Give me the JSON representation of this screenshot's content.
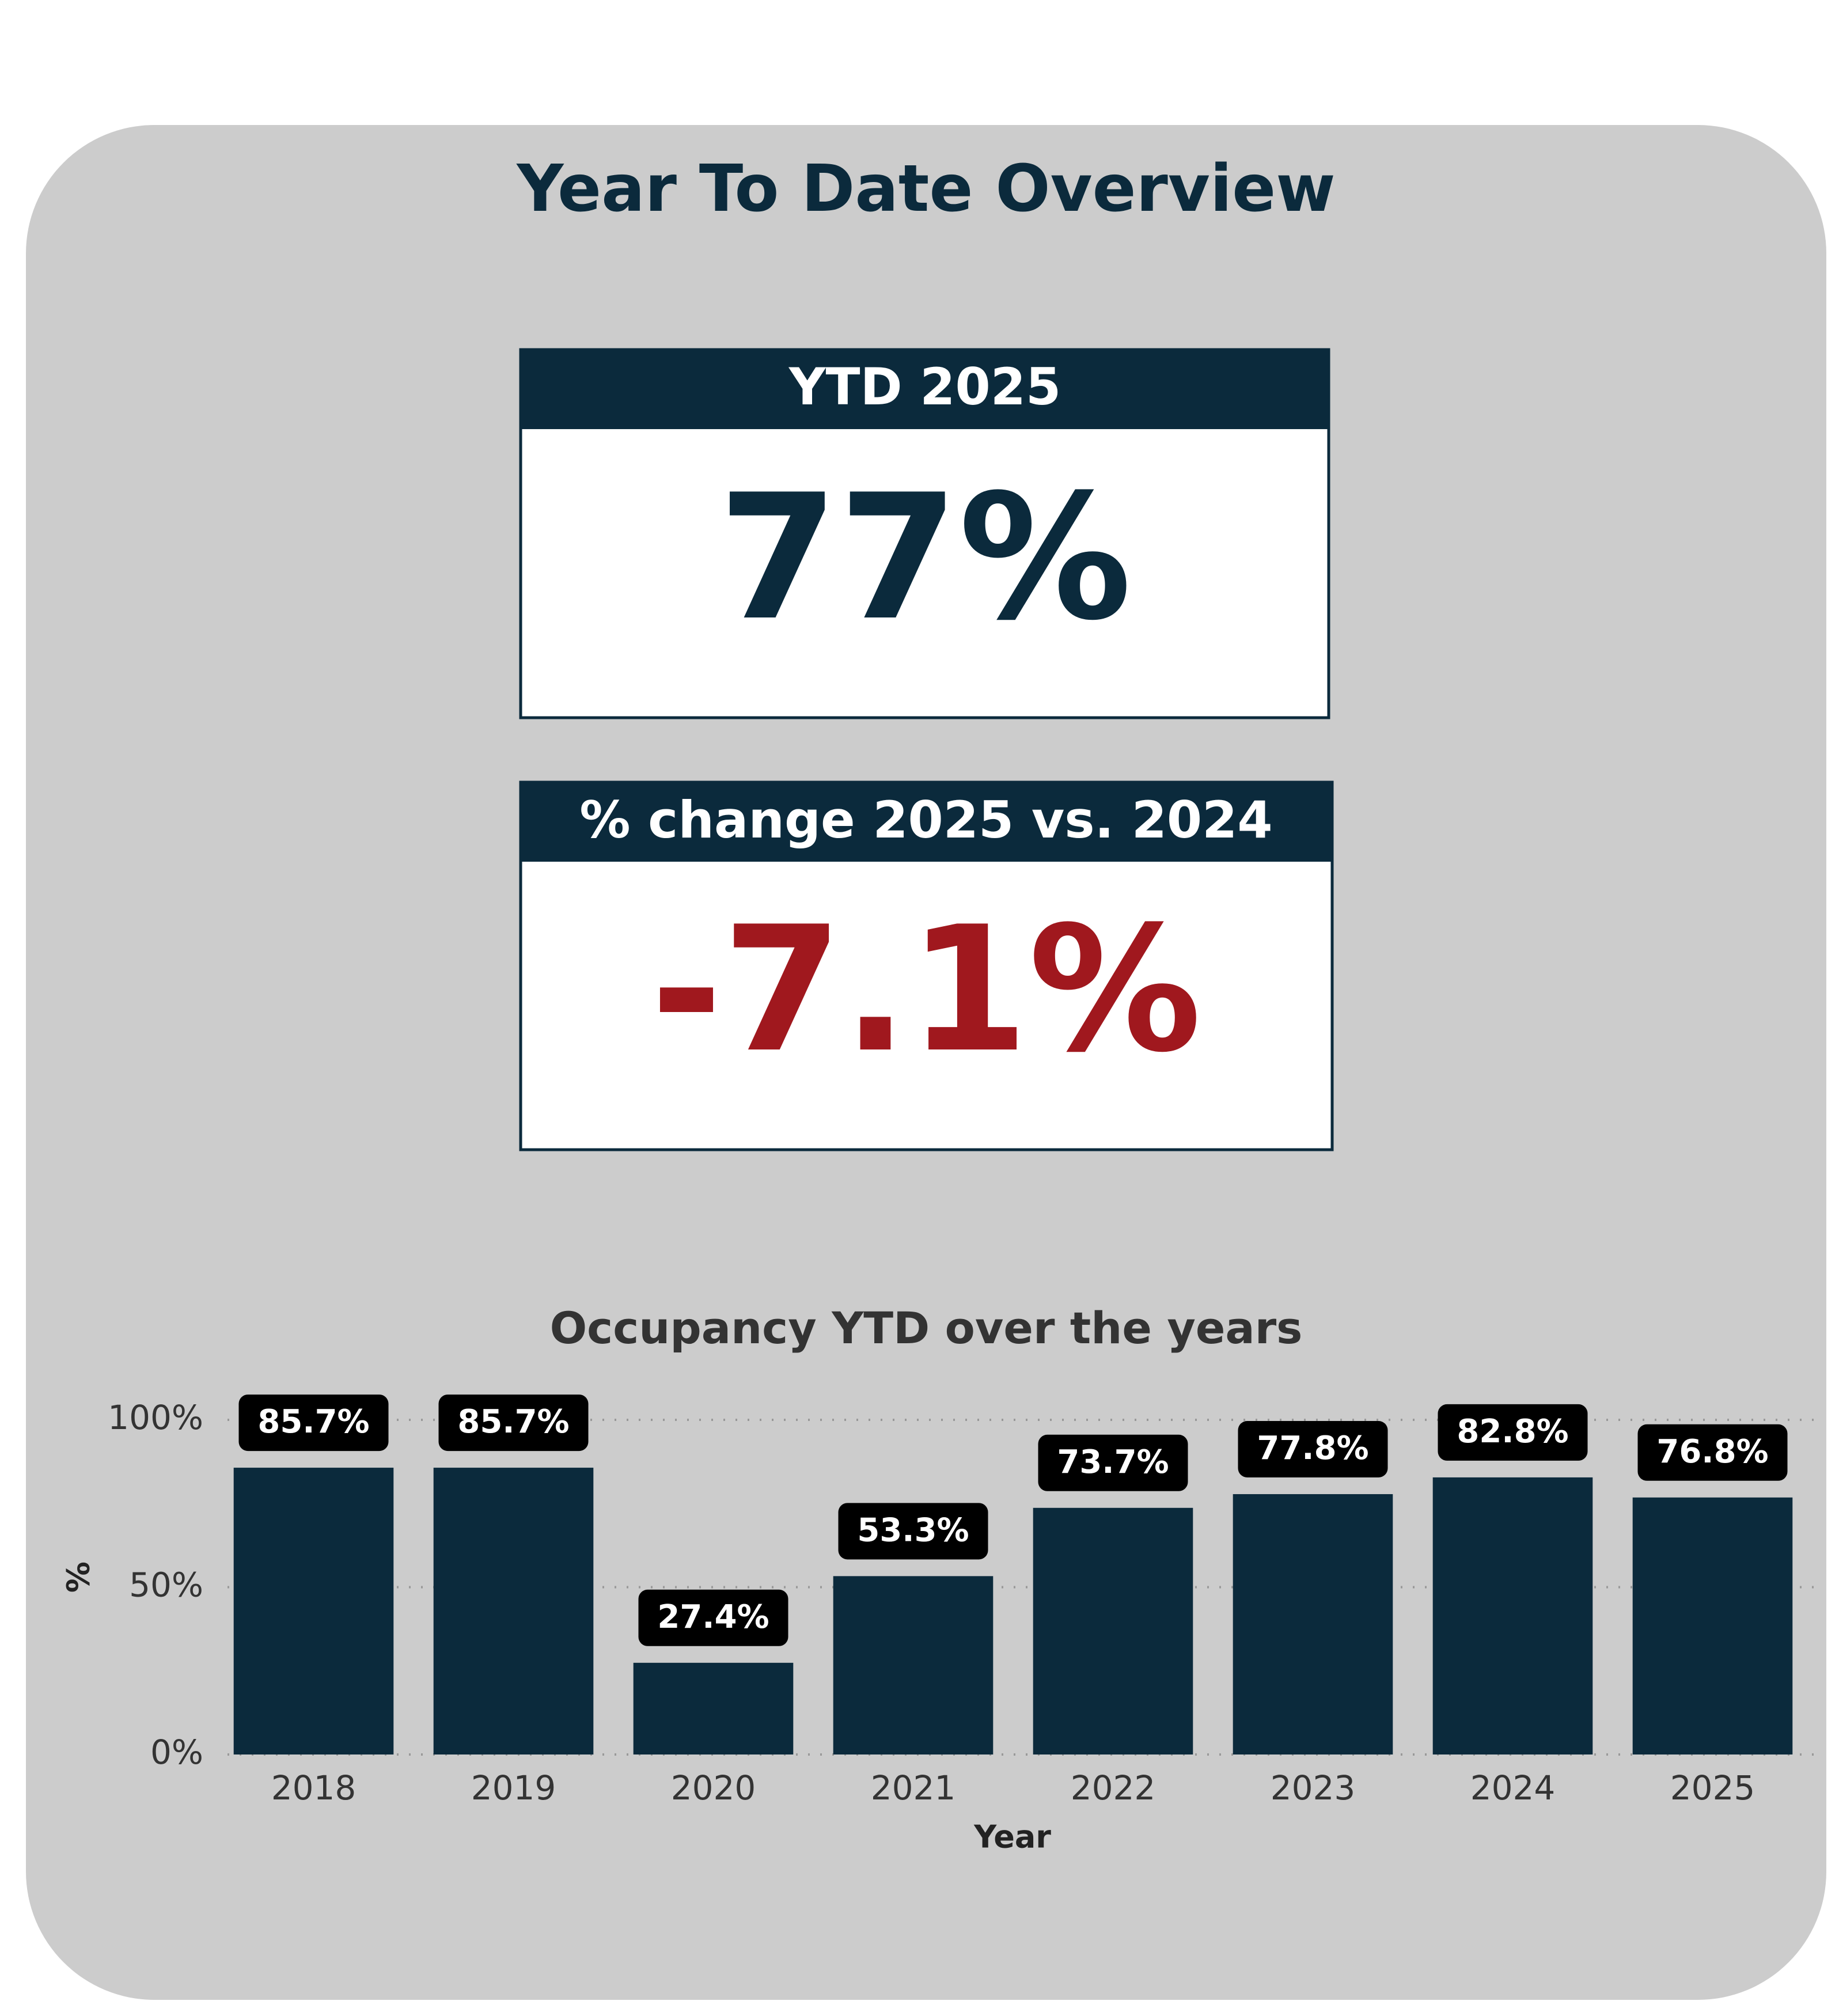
{
  "header": {
    "title": "Year To Date Overview"
  },
  "kpis": [
    {
      "label": "YTD 2025",
      "value": "77%"
    },
    {
      "label": "% change 2025 vs. 2024",
      "value": "-7.1%"
    }
  ],
  "chart_data": {
    "type": "bar",
    "title": "Occupancy YTD over the years",
    "x_label": "Year",
    "y_label": "%",
    "categories": [
      "2018",
      "2019",
      "2020",
      "2021",
      "2022",
      "2023",
      "2024",
      "2025"
    ],
    "values": [
      85.7,
      85.7,
      27.4,
      53.3,
      73.7,
      77.8,
      82.8,
      76.8
    ],
    "value_labels": [
      "85.7%",
      "85.7%",
      "27.4%",
      "53.3%",
      "73.7%",
      "77.8%",
      "82.8%",
      "76.8%"
    ],
    "color": "#0b2a3c",
    "ylim": [
      0,
      100
    ],
    "yticks": [
      {
        "value": 0,
        "label": "0%"
      },
      {
        "value": 50,
        "label": "50%"
      },
      {
        "value": 100,
        "label": "100%"
      }
    ],
    "grid": true
  }
}
